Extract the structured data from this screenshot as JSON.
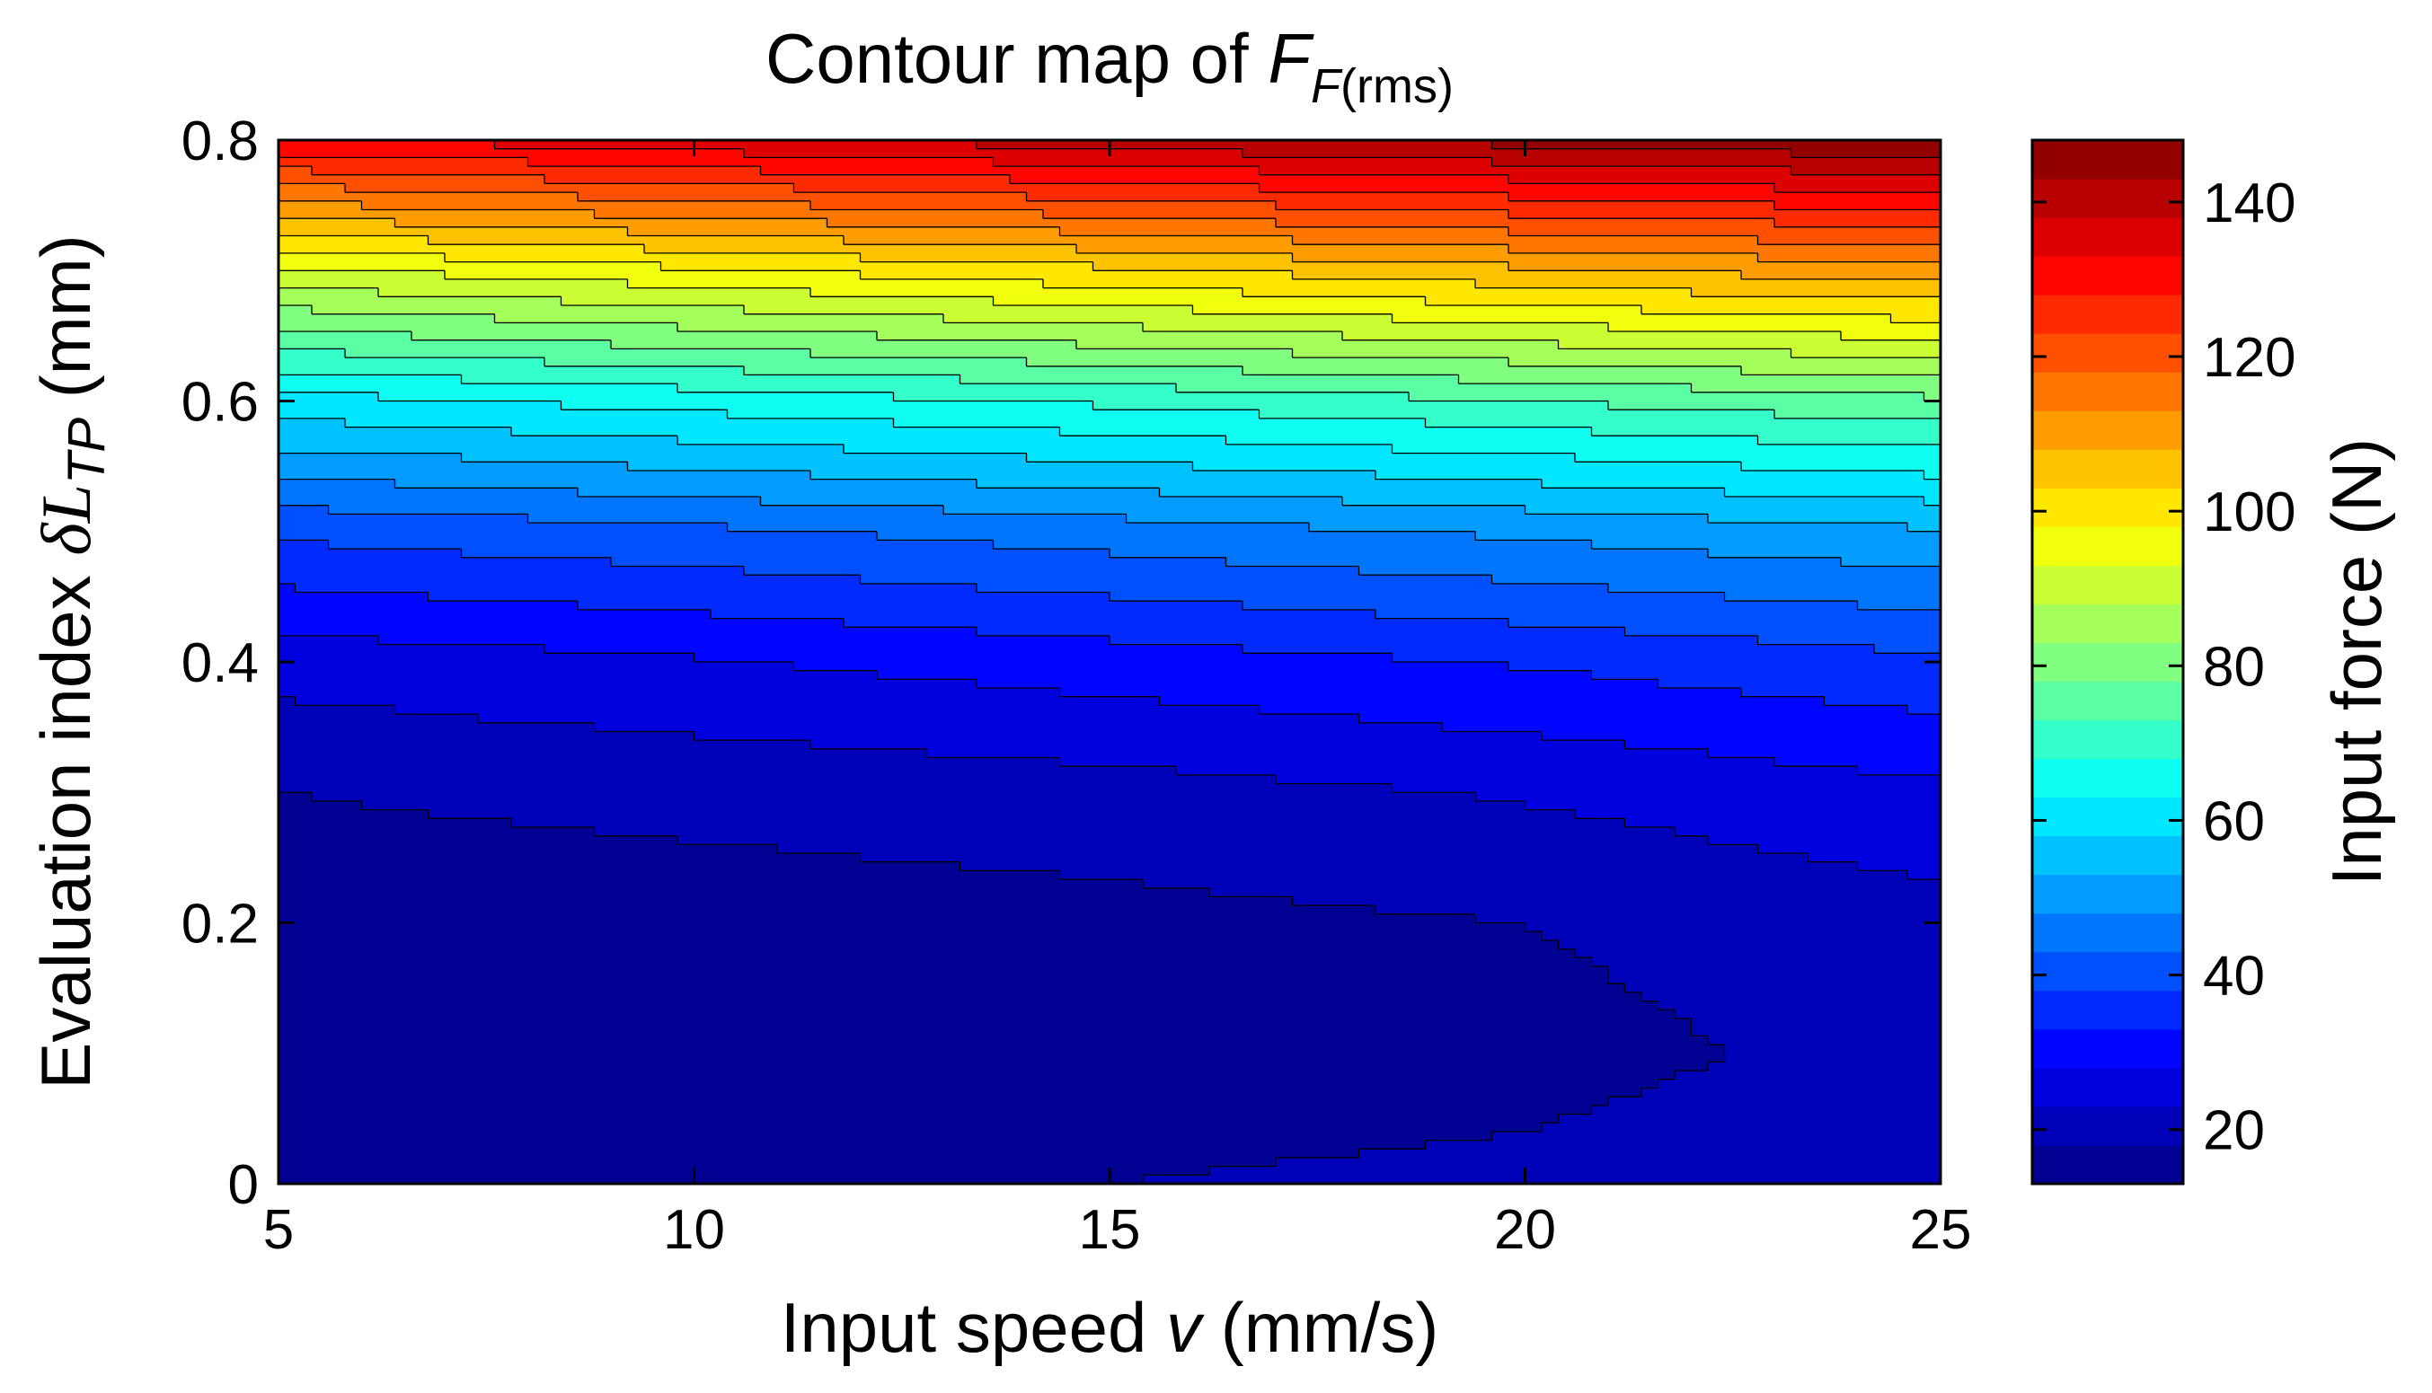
{
  "chart_data": {
    "type": "heatmap",
    "subtype": "filled-contour",
    "title": {
      "prefix": "Contour map of ",
      "symbol": "F",
      "subscript_symbol": "F",
      "subscript_tail": "(rms)"
    },
    "xlabel": {
      "prefix": "Input speed ",
      "symbol": "v",
      "suffix": " (mm/s)"
    },
    "ylabel": {
      "prefix": "Evaluation index ",
      "symbol": "δL",
      "subscript": "TP",
      "suffix": " (mm)"
    },
    "colorbar_label": "Input force (N)",
    "xlim": [
      5,
      25
    ],
    "ylim": [
      0,
      0.8
    ],
    "xticks": [
      "5",
      "10",
      "15",
      "20",
      "25"
    ],
    "yticks": [
      "0",
      "0.2",
      "0.4",
      "0.6",
      "0.8"
    ],
    "colorbar_ticks": [
      "20",
      "40",
      "60",
      "80",
      "100",
      "120",
      "140"
    ],
    "colorbar_range": [
      13,
      148
    ],
    "colormap": "jet",
    "contour_levels": [
      13,
      18,
      23,
      28,
      33,
      38,
      43,
      48,
      53,
      58,
      63,
      68,
      73,
      78,
      83,
      88,
      93,
      98,
      103,
      108,
      113,
      118,
      123,
      128,
      133,
      138,
      143,
      148
    ],
    "x_samples": [
      5,
      10,
      15,
      20,
      25
    ],
    "y_samples": [
      0,
      0.1,
      0.2,
      0.3,
      0.4,
      0.5,
      0.6,
      0.7,
      0.8
    ],
    "z_values": [
      [
        17,
        17.5,
        18,
        19,
        21.5
      ],
      [
        15,
        15,
        15.5,
        16.5,
        19.5
      ],
      [
        15,
        15.5,
        16.5,
        18,
        21
      ],
      [
        18,
        19.5,
        21,
        23.5,
        27
      ],
      [
        25,
        27.5,
        30.5,
        33.5,
        37
      ],
      [
        39,
        42,
        45.5,
        49,
        52.5
      ],
      [
        61,
        65,
        69,
        73,
        77
      ],
      [
        92,
        97,
        102,
        107,
        111
      ],
      [
        132,
        136.5,
        140.5,
        144.5,
        148
      ]
    ],
    "grid": false,
    "colorbar_position": "right"
  }
}
